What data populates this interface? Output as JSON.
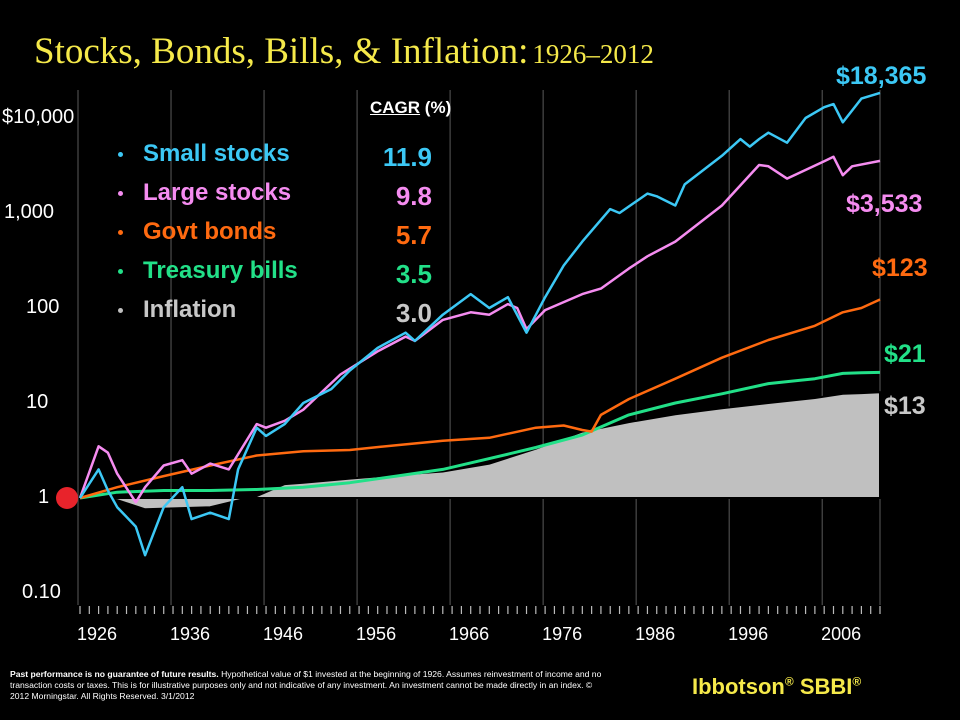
{
  "title": {
    "main": "Stocks, Bonds, Bills, & Inflation:",
    "years": "1926–2012"
  },
  "cagr_header": {
    "label": "CAGR",
    "unit": " (%)"
  },
  "footer": {
    "disclaimer_bold": "Past performance is no guarantee of future results.",
    "disclaimer_text": " Hypothetical value of $1 invested at the beginning of 1926. Assumes reinvestment of income and no transaction costs or taxes. This is for illustrative purposes only and not indicative of any investment. An investment cannot be made directly in an index. © 2012 Morningstar. All Rights Reserved. 3/1/2012",
    "brand": "Ibbotson",
    "brand_suffix": "SBBI",
    "reg": "®"
  },
  "colors": {
    "small_stocks": "#3cc8f5",
    "large_stocks": "#f58cf0",
    "govt_bonds": "#ff6a10",
    "treasury_bills": "#22e088",
    "inflation": "#c0c0c0",
    "title": "#f5e94a",
    "start_marker": "#e8232b"
  },
  "chart_data": {
    "type": "line",
    "y_scale": "log",
    "ylim": [
      0.1,
      30000
    ],
    "xlim": [
      1926,
      2012
    ],
    "y_tick_labels": [
      "$10,000",
      "1,000",
      "100",
      "10",
      "1",
      "0.10"
    ],
    "y_tick_values": [
      10000,
      1000,
      100,
      10,
      1,
      0.1
    ],
    "x_tick_labels": [
      "1926",
      "1936",
      "1946",
      "1956",
      "1966",
      "1976",
      "1986",
      "1996",
      "2006"
    ],
    "x_tick_values": [
      1926,
      1936,
      1946,
      1956,
      1966,
      1976,
      1986,
      1996,
      2006
    ],
    "series": [
      {
        "key": "small_stocks",
        "name": "Small stocks",
        "cagr": "11.9",
        "end_label": "$18,365",
        "x": [
          1926,
          1928,
          1929,
          1930,
          1932,
          1933,
          1935,
          1937,
          1938,
          1940,
          1942,
          1943,
          1945,
          1946,
          1948,
          1950,
          1953,
          1955,
          1958,
          1961,
          1962,
          1965,
          1968,
          1970,
          1972,
          1974,
          1976,
          1978,
          1980,
          1983,
          1984,
          1987,
          1988,
          1990,
          1991,
          1995,
          1997,
          1998,
          1999,
          2000,
          2002,
          2004,
          2006,
          2007,
          2008,
          2009,
          2010,
          2012
        ],
        "y": [
          1,
          2.0,
          1.2,
          0.8,
          0.5,
          0.25,
          0.8,
          1.3,
          0.6,
          0.7,
          0.6,
          2.0,
          5.5,
          4.5,
          6,
          10,
          14,
          22,
          38,
          55,
          45,
          85,
          140,
          100,
          130,
          55,
          130,
          280,
          500,
          1100,
          1000,
          1600,
          1500,
          1200,
          2000,
          4000,
          6000,
          5000,
          6000,
          7000,
          5500,
          10000,
          13000,
          14000,
          9000,
          12000,
          16000,
          18365
        ]
      },
      {
        "key": "large_stocks",
        "name": "Large stocks",
        "cagr": "9.8",
        "end_label": "$3,533",
        "x": [
          1926,
          1928,
          1929,
          1930,
          1932,
          1933,
          1935,
          1937,
          1938,
          1940,
          1942,
          1945,
          1946,
          1948,
          1950,
          1954,
          1958,
          1961,
          1962,
          1965,
          1968,
          1970,
          1972,
          1973,
          1974,
          1976,
          1980,
          1982,
          1985,
          1987,
          1990,
          1995,
          1999,
          2000,
          2002,
          2006,
          2007,
          2008,
          2009,
          2012
        ],
        "y": [
          1,
          3.5,
          3,
          1.8,
          0.9,
          1.3,
          2.2,
          2.5,
          1.8,
          2.3,
          2,
          6,
          5.5,
          6.5,
          8.5,
          20,
          35,
          50,
          45,
          75,
          90,
          85,
          110,
          100,
          60,
          95,
          140,
          160,
          260,
          350,
          500,
          1200,
          3200,
          3100,
          2300,
          3500,
          3900,
          2500,
          3100,
          3533
        ]
      },
      {
        "key": "govt_bonds",
        "name": "Govt bonds",
        "cagr": "5.7",
        "end_label": "$123",
        "x": [
          1926,
          1930,
          1935,
          1940,
          1945,
          1950,
          1955,
          1960,
          1965,
          1970,
          1975,
          1978,
          1980,
          1981,
          1982,
          1985,
          1990,
          1995,
          2000,
          2005,
          2008,
          2010,
          2012
        ],
        "y": [
          1,
          1.3,
          1.7,
          2.2,
          2.8,
          3.1,
          3.2,
          3.6,
          4.0,
          4.3,
          5.5,
          5.8,
          5.2,
          5.0,
          7.5,
          11,
          18,
          30,
          46,
          65,
          90,
          100,
          123
        ]
      },
      {
        "key": "treasury_bills",
        "name": "Treasury bills",
        "cagr": "3.5",
        "end_label": "$21",
        "x": [
          1926,
          1930,
          1935,
          1940,
          1945,
          1950,
          1955,
          1960,
          1965,
          1970,
          1975,
          1980,
          1985,
          1990,
          1995,
          2000,
          2005,
          2008,
          2010,
          2012
        ],
        "y": [
          1,
          1.15,
          1.2,
          1.2,
          1.23,
          1.3,
          1.45,
          1.7,
          2.0,
          2.6,
          3.4,
          4.6,
          7.5,
          10,
          12.5,
          16,
          18,
          20.5,
          20.8,
          21
        ]
      },
      {
        "key": "inflation",
        "name": "Inflation",
        "cagr": "3.0",
        "end_label": "$13",
        "x": [
          1926,
          1930,
          1933,
          1940,
          1945,
          1948,
          1950,
          1955,
          1960,
          1965,
          1970,
          1975,
          1980,
          1985,
          1990,
          1995,
          2000,
          2005,
          2008,
          2010,
          2012
        ],
        "y": [
          1,
          0.95,
          0.76,
          0.8,
          1.05,
          1.4,
          1.45,
          1.6,
          1.75,
          1.9,
          2.3,
          3.3,
          5.0,
          6.3,
          7.6,
          8.8,
          10,
          11.3,
          12.5,
          12.7,
          13
        ]
      }
    ]
  }
}
